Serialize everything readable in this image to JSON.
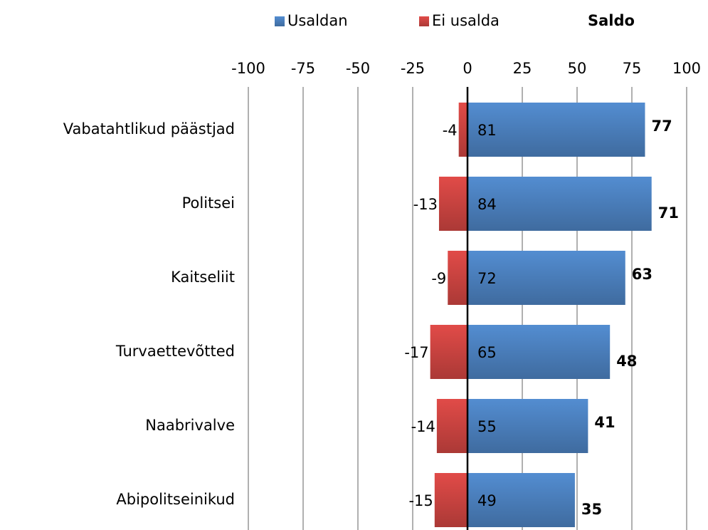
{
  "chart_data": {
    "type": "diverging-bar",
    "categories": [
      "Vabatahtlikud päästjad",
      "Politsei",
      "Kaitseliit",
      "Turvaettevõtted",
      "Naabrivalve",
      "Abipolitseinikud"
    ],
    "series": [
      {
        "name": "Usaldan",
        "color": "#4a7ebb",
        "values": [
          81,
          84,
          72,
          65,
          55,
          49
        ]
      },
      {
        "name": "Ei usalda",
        "color": "#c94340",
        "values": [
          -4,
          -13,
          -9,
          -17,
          -14,
          -15
        ]
      }
    ],
    "saldo": {
      "name": "Saldo",
      "values": [
        77,
        71,
        63,
        48,
        41,
        35
      ]
    },
    "xlim": [
      -100,
      100
    ],
    "xticks": [
      -100,
      -75,
      -50,
      -25,
      0,
      25,
      50,
      75,
      100
    ],
    "grid": true,
    "legend": "top"
  }
}
